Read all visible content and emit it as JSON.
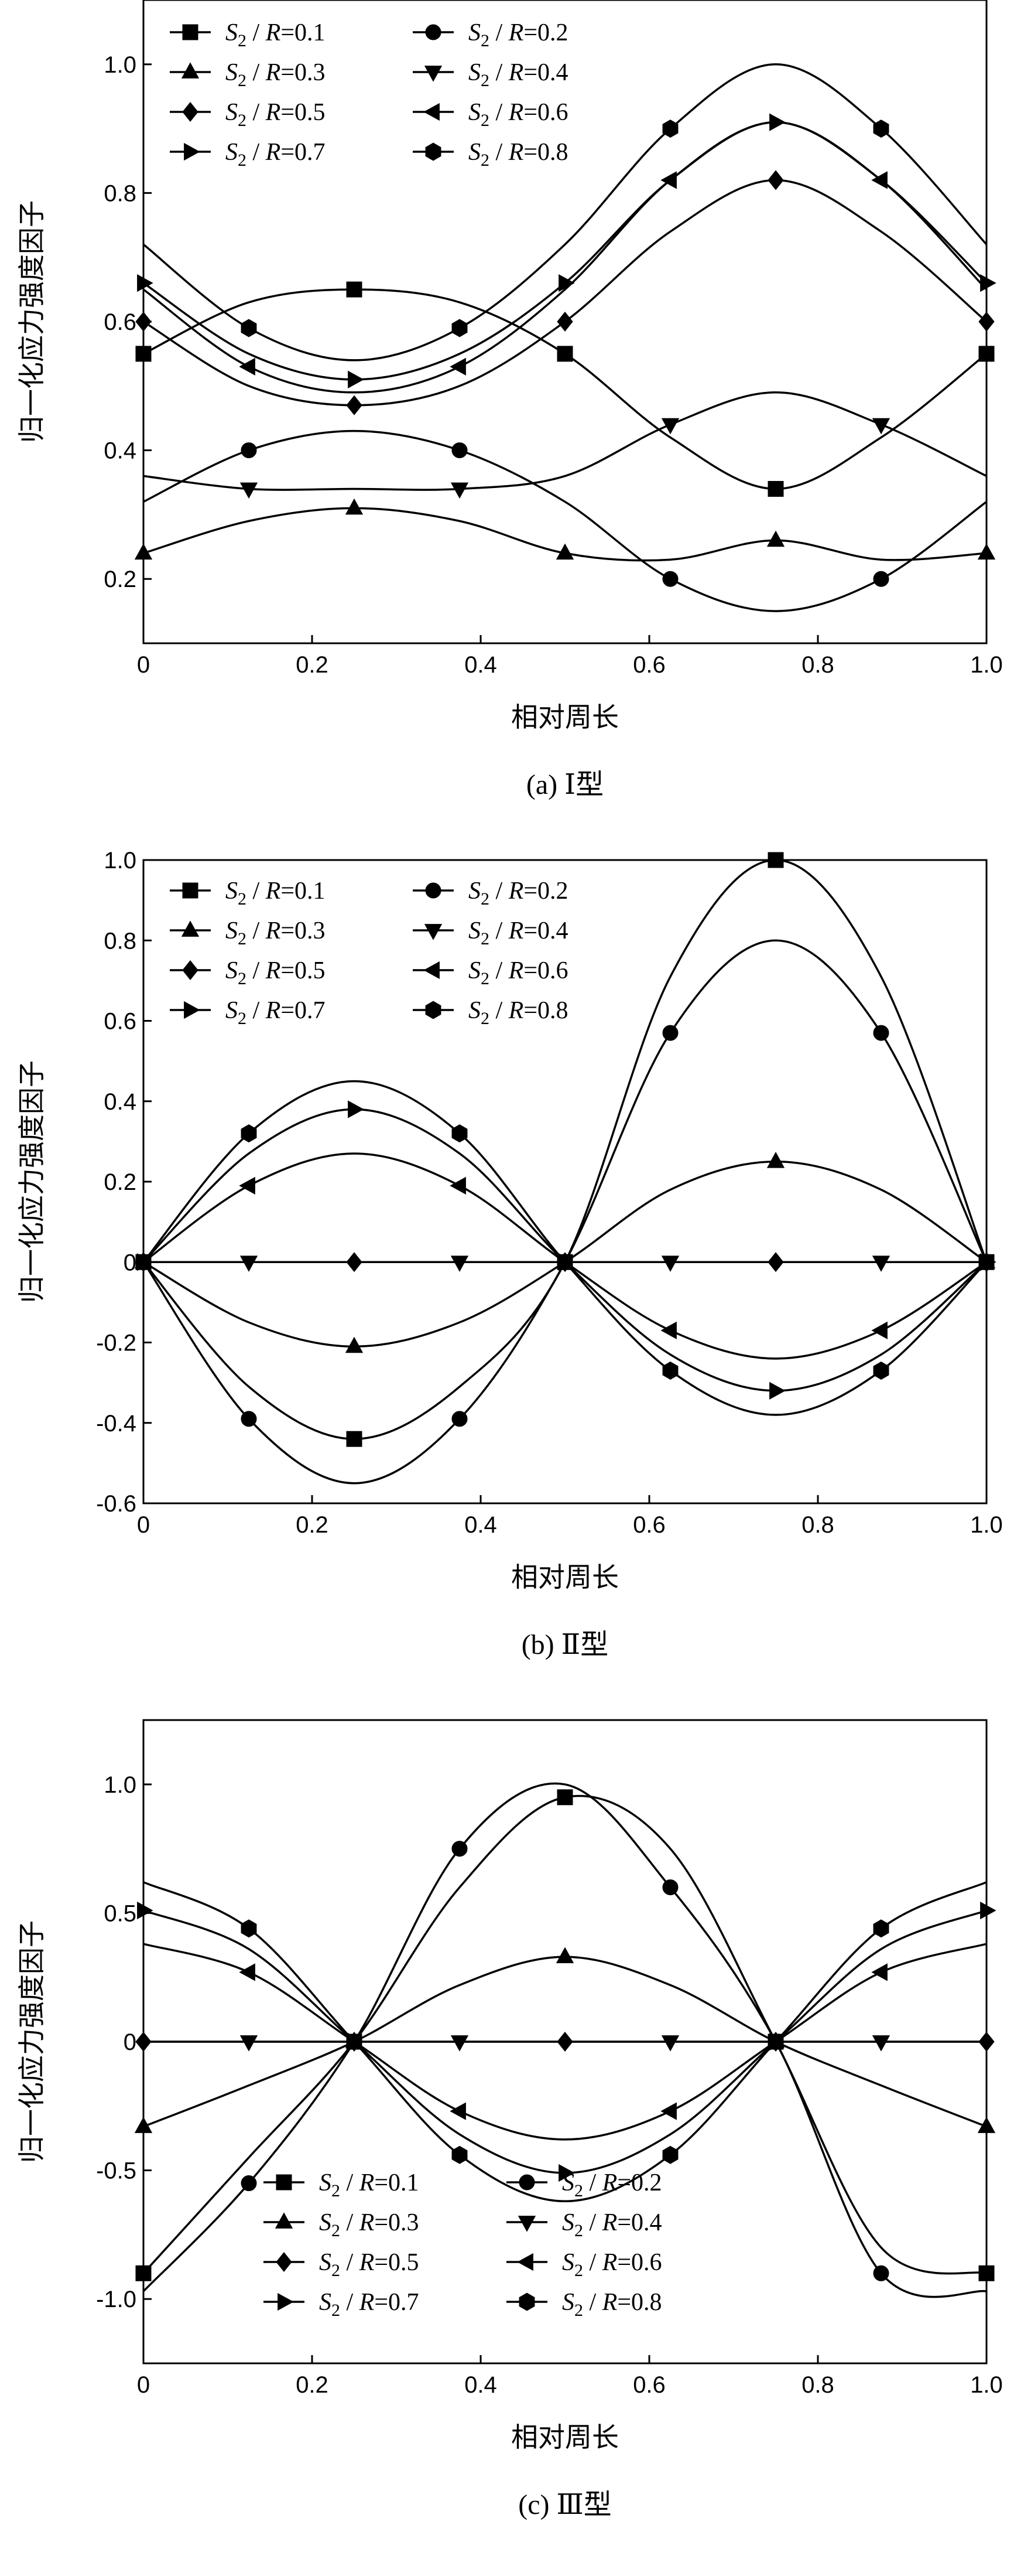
{
  "chart_data": [
    {
      "type": "line",
      "caption": "(a) Ⅰ型",
      "xlabel": "相对周长",
      "ylabel": "归一化应力强度因子",
      "xlim": [
        0,
        1.0
      ],
      "ylim": [
        0.1,
        1.1
      ],
      "xticks": [
        "0",
        "0.2",
        "0.4",
        "0.6",
        "0.8",
        "1.0"
      ],
      "yticks": [
        "0.2",
        "0.4",
        "0.6",
        "0.8",
        "1.0"
      ],
      "legend_position": "top-left",
      "x": [
        0,
        0.125,
        0.25,
        0.375,
        0.5,
        0.625,
        0.75,
        0.875,
        1.0
      ],
      "series": [
        {
          "name": "S2 / R=0.1",
          "marker": "square",
          "values": [
            0.55,
            0.63,
            0.65,
            0.63,
            0.55,
            0.42,
            0.34,
            0.42,
            0.55
          ]
        },
        {
          "name": "S2 / R=0.2",
          "marker": "circle",
          "values": [
            0.32,
            0.4,
            0.43,
            0.4,
            0.32,
            0.2,
            0.15,
            0.2,
            0.32
          ]
        },
        {
          "name": "S2 / R=0.3",
          "marker": "triangle-up",
          "values": [
            0.24,
            0.29,
            0.31,
            0.29,
            0.24,
            0.23,
            0.26,
            0.23,
            0.24
          ]
        },
        {
          "name": "S2 / R=0.4",
          "marker": "triangle-down",
          "values": [
            0.36,
            0.34,
            0.34,
            0.34,
            0.36,
            0.44,
            0.49,
            0.44,
            0.36
          ]
        },
        {
          "name": "S2 / R=0.5",
          "marker": "diamond",
          "values": [
            0.6,
            0.5,
            0.47,
            0.5,
            0.6,
            0.74,
            0.82,
            0.74,
            0.6
          ]
        },
        {
          "name": "S2 / R=0.6",
          "marker": "triangle-left",
          "values": [
            0.65,
            0.53,
            0.49,
            0.53,
            0.65,
            0.82,
            0.91,
            0.82,
            0.65
          ]
        },
        {
          "name": "S2 / R=0.7",
          "marker": "triangle-right",
          "values": [
            0.66,
            0.55,
            0.51,
            0.55,
            0.66,
            0.82,
            0.91,
            0.82,
            0.66
          ]
        },
        {
          "name": "S2 / R=0.8",
          "marker": "hexagon",
          "values": [
            0.72,
            0.59,
            0.54,
            0.59,
            0.72,
            0.9,
            1.0,
            0.9,
            0.72
          ]
        }
      ]
    },
    {
      "type": "line",
      "caption": "(b) Ⅱ型",
      "xlabel": "相对周长",
      "ylabel": "归一化应力强度因子",
      "xlim": [
        0,
        1.0
      ],
      "ylim": [
        -0.6,
        1.0
      ],
      "xticks": [
        "0",
        "0.2",
        "0.4",
        "0.6",
        "0.8",
        "1.0"
      ],
      "yticks": [
        "-0.6",
        "-0.4",
        "-0.2",
        "0",
        "0.2",
        "0.4",
        "0.6",
        "0.8",
        "1.0"
      ],
      "legend_position": "top-left",
      "x": [
        0,
        0.125,
        0.25,
        0.375,
        0.5,
        0.625,
        0.75,
        0.875,
        1.0
      ],
      "series": [
        {
          "name": "S2 / R=0.1",
          "marker": "square",
          "values": [
            0,
            -0.31,
            -0.44,
            -0.31,
            0,
            0.71,
            1.0,
            0.71,
            0
          ]
        },
        {
          "name": "S2 / R=0.2",
          "marker": "circle",
          "values": [
            0,
            -0.39,
            -0.55,
            -0.39,
            0,
            0.57,
            0.8,
            0.57,
            0
          ]
        },
        {
          "name": "S2 / R=0.3",
          "marker": "triangle-up",
          "values": [
            0,
            -0.15,
            -0.21,
            -0.15,
            0,
            0.18,
            0.25,
            0.18,
            0
          ]
        },
        {
          "name": "S2 / R=0.4",
          "marker": "triangle-down",
          "values": [
            0,
            0,
            0,
            0,
            0,
            0,
            0,
            0,
            0
          ]
        },
        {
          "name": "S2 / R=0.5",
          "marker": "diamond",
          "values": [
            0,
            0,
            0,
            0,
            0,
            0,
            0,
            0,
            0
          ]
        },
        {
          "name": "S2 / R=0.6",
          "marker": "triangle-left",
          "values": [
            0,
            0.19,
            0.27,
            0.19,
            0,
            -0.17,
            -0.24,
            -0.17,
            0
          ]
        },
        {
          "name": "S2 / R=0.7",
          "marker": "triangle-right",
          "values": [
            0,
            0.27,
            0.38,
            0.27,
            0,
            -0.23,
            -0.32,
            -0.23,
            0
          ]
        },
        {
          "name": "S2 / R=0.8",
          "marker": "hexagon",
          "values": [
            0,
            0.32,
            0.45,
            0.32,
            0,
            -0.27,
            -0.38,
            -0.27,
            0
          ]
        }
      ]
    },
    {
      "type": "line",
      "caption": "(c) Ⅲ型",
      "xlabel": "相对周长",
      "ylabel": "归一化应力强度因子",
      "xlim": [
        0,
        1.0
      ],
      "ylim": [
        -1.25,
        1.25
      ],
      "xticks": [
        "0",
        "0.2",
        "0.4",
        "0.6",
        "0.8",
        "1.0"
      ],
      "yticks": [
        "-1.0",
        "-0.5",
        "0",
        "0.5",
        "1.0"
      ],
      "legend_position": "bottom-left",
      "x": [
        0,
        0.125,
        0.25,
        0.375,
        0.5,
        0.625,
        0.75,
        0.875,
        1.0
      ],
      "series": [
        {
          "name": "S2 / R=0.1",
          "marker": "square",
          "values": [
            -0.9,
            -0.45,
            0,
            0.6,
            0.95,
            0.75,
            0,
            -0.8,
            -0.9
          ]
        },
        {
          "name": "S2 / R=0.2",
          "marker": "circle",
          "values": [
            -0.97,
            -0.55,
            0,
            0.75,
            1.0,
            0.6,
            0,
            -0.9,
            -0.97
          ]
        },
        {
          "name": "S2 / R=0.3",
          "marker": "triangle-up",
          "values": [
            -0.33,
            -0.17,
            0,
            0.22,
            0.33,
            0.22,
            0,
            -0.17,
            -0.33
          ]
        },
        {
          "name": "S2 / R=0.4",
          "marker": "triangle-down",
          "values": [
            0,
            0,
            0,
            0,
            0,
            0,
            0,
            0,
            0
          ]
        },
        {
          "name": "S2 / R=0.5",
          "marker": "diamond",
          "values": [
            0,
            0,
            0,
            0,
            0,
            0,
            0,
            0,
            0
          ]
        },
        {
          "name": "S2 / R=0.6",
          "marker": "triangle-left",
          "values": [
            0.38,
            0.27,
            0,
            -0.27,
            -0.38,
            -0.27,
            0,
            0.27,
            0.38
          ]
        },
        {
          "name": "S2 / R=0.7",
          "marker": "triangle-right",
          "values": [
            0.51,
            0.36,
            0,
            -0.36,
            -0.51,
            -0.36,
            0,
            0.36,
            0.51
          ]
        },
        {
          "name": "S2 / R=0.8",
          "marker": "hexagon",
          "values": [
            0.62,
            0.44,
            0,
            -0.44,
            -0.62,
            -0.44,
            0,
            0.44,
            0.62
          ]
        }
      ]
    }
  ]
}
